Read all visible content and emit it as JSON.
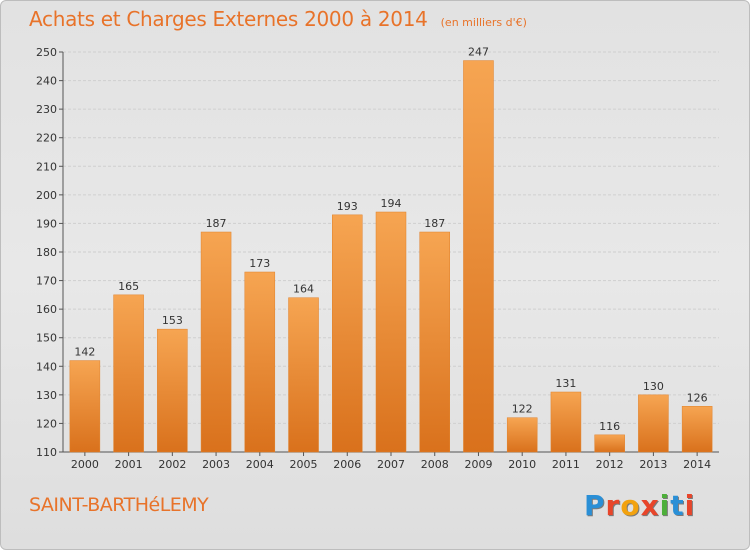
{
  "title": "Achats et Charges Externes 2000 à 2014",
  "unit": "(en milliers d'€)",
  "place": "SAINT-BARTHéLEMY",
  "brand": "Proxiti",
  "colors": {
    "bar_top": "#f6a552",
    "bar_bottom": "#d9711c",
    "title": "#e8732a",
    "brand_letters": [
      "#2a8fd6",
      "#e8452a",
      "#f2a20f",
      "#e8452a",
      "#4daf3a",
      "#2a8fd6",
      "#e8452a"
    ]
  },
  "chart_data": {
    "type": "bar",
    "title": "Achats et Charges Externes 2000 à 2014",
    "categories": [
      "2000",
      "2001",
      "2002",
      "2003",
      "2004",
      "2005",
      "2006",
      "2007",
      "2008",
      "2009",
      "2010",
      "2011",
      "2012",
      "2013",
      "2014"
    ],
    "values": [
      142,
      165,
      153,
      187,
      173,
      164,
      193,
      194,
      187,
      247,
      122,
      131,
      116,
      130,
      126
    ],
    "ylim": [
      110,
      250
    ],
    "yticks": [
      110,
      120,
      130,
      140,
      150,
      160,
      170,
      180,
      190,
      200,
      210,
      220,
      230,
      240,
      250
    ],
    "grid": true,
    "xlabel": "",
    "ylabel": ""
  }
}
